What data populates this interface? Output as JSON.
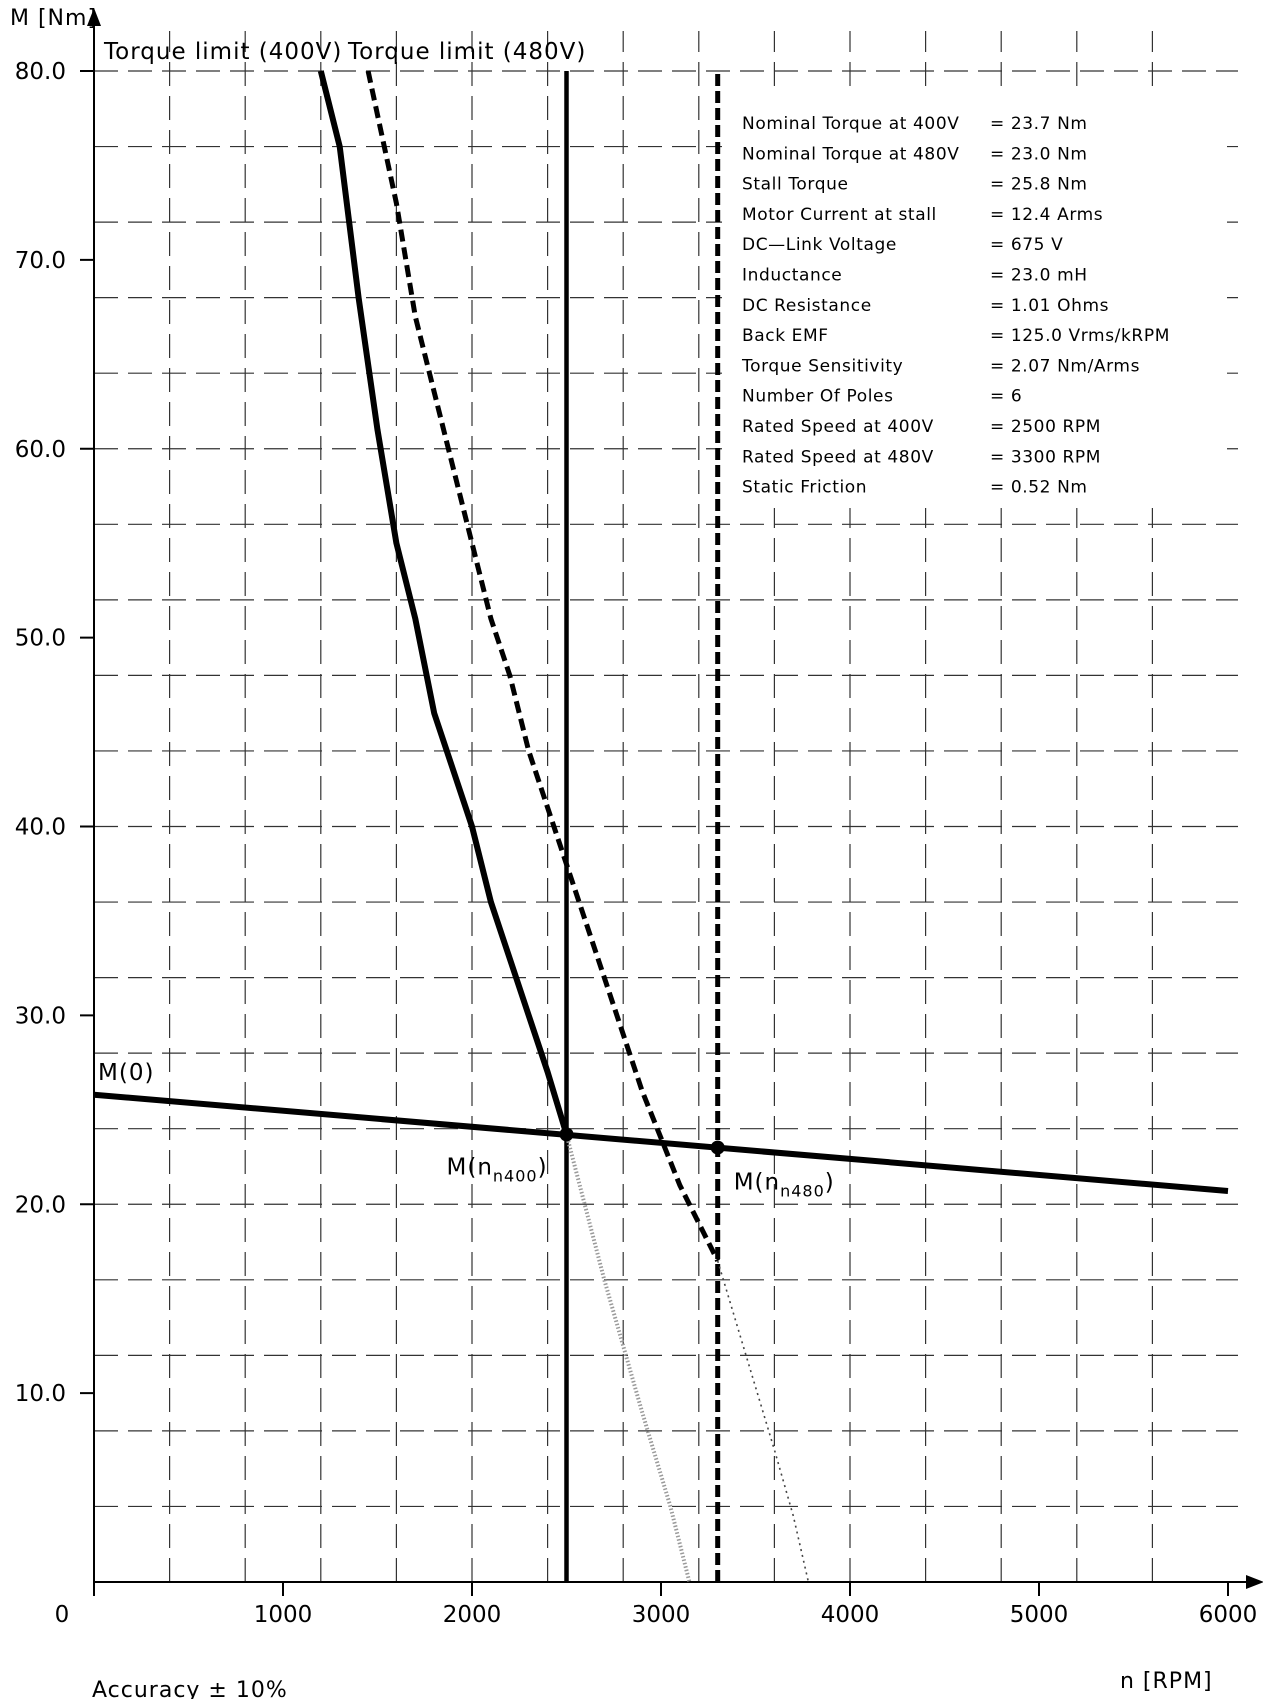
{
  "chart_data": {
    "type": "line",
    "xlabel": "n [RPM]",
    "ylabel": "M [Nm]",
    "xlim": [
      0,
      6000
    ],
    "ylim": [
      0,
      80
    ],
    "x_ticks": [
      "0",
      "1000",
      "2000",
      "3000",
      "4000",
      "5000",
      "6000"
    ],
    "y_ticks": [
      "10.0",
      "20.0",
      "30.0",
      "40.0",
      "50.0",
      "60.0",
      "70.0",
      "80.0"
    ],
    "grid": true,
    "series": [
      {
        "name": "Torque limit (400V)",
        "style": "solid-thick",
        "points": [
          [
            1200,
            80
          ],
          [
            1300,
            76
          ],
          [
            1400,
            68
          ],
          [
            1500,
            61
          ],
          [
            1600,
            55
          ],
          [
            1700,
            51
          ],
          [
            1800,
            46
          ],
          [
            1900,
            43
          ],
          [
            2000,
            40
          ],
          [
            2100,
            36
          ],
          [
            2200,
            33
          ],
          [
            2300,
            30
          ],
          [
            2400,
            27
          ],
          [
            2500,
            23.7
          ]
        ]
      },
      {
        "name": "Torque limit (480V)",
        "style": "dashed-thick",
        "points": [
          [
            1450,
            80
          ],
          [
            1600,
            73
          ],
          [
            1700,
            67
          ],
          [
            1800,
            63
          ],
          [
            1900,
            59
          ],
          [
            2000,
            55
          ],
          [
            2100,
            51
          ],
          [
            2200,
            48
          ],
          [
            2300,
            44
          ],
          [
            2400,
            41
          ],
          [
            2500,
            38
          ],
          [
            2600,
            35
          ],
          [
            2700,
            32
          ],
          [
            2800,
            29
          ],
          [
            2900,
            26
          ],
          [
            3000,
            23.5
          ],
          [
            3100,
            21
          ],
          [
            3200,
            19
          ],
          [
            3300,
            17
          ]
        ]
      },
      {
        "name": "M(0)",
        "style": "solid-thick",
        "points": [
          [
            0,
            25.8
          ],
          [
            6000,
            20.7
          ]
        ]
      },
      {
        "name": "",
        "style": "solid-vertical",
        "points": [
          [
            2500,
            0
          ],
          [
            2500,
            80
          ]
        ]
      },
      {
        "name": "",
        "style": "dashed-vertical",
        "points": [
          [
            3300,
            0
          ],
          [
            3300,
            80
          ]
        ]
      },
      {
        "name": "",
        "style": "dotted-light",
        "points": [
          [
            2500,
            23.7
          ],
          [
            2700,
            16
          ],
          [
            2900,
            9
          ],
          [
            3050,
            4
          ],
          [
            3150,
            0
          ]
        ]
      },
      {
        "name": "",
        "style": "dotted-fine",
        "points": [
          [
            3300,
            17
          ],
          [
            3450,
            12
          ],
          [
            3600,
            7
          ],
          [
            3700,
            3.5
          ],
          [
            3780,
            0
          ]
        ]
      }
    ],
    "markers": [
      {
        "x": 2500,
        "y": 23.7,
        "label": "M(n",
        "sub": "n400",
        "suffix": ")"
      },
      {
        "x": 3300,
        "y": 23.0,
        "label": "M(n",
        "sub": "n480",
        "suffix": ")"
      }
    ],
    "annotations": {
      "m0": "M(0)",
      "torque_400": "Torque limit (400V)",
      "torque_480": "Torque limit (480V)"
    },
    "specs": [
      {
        "label": "Nominal Torque at 400V",
        "value": "= 23.7  Nm"
      },
      {
        "label": "Nominal Torque at 480V",
        "value": "= 23.0  Nm"
      },
      {
        "label": "Stall Torque",
        "value": "= 25.8  Nm"
      },
      {
        "label": "Motor Current at stall",
        "value": "= 12.4   Arms"
      },
      {
        "label": "DC—Link Voltage",
        "value": "= 675    V"
      },
      {
        "label": "Inductance",
        "value": "= 23.0  mH"
      },
      {
        "label": "DC Resistance",
        "value": "= 1.01   Ohms"
      },
      {
        "label": "Back EMF",
        "value": "= 125.0 Vrms/kRPM"
      },
      {
        "label": "Torque Sensitivity",
        "value": "= 2.07  Nm/Arms"
      },
      {
        "label": "Number Of Poles",
        "value": "= 6"
      },
      {
        "label": "Rated Speed at 400V",
        "value": "= 2500 RPM"
      },
      {
        "label": "Rated Speed at 480V",
        "value": "= 3300 RPM"
      },
      {
        "label": "Static Friction",
        "value": "= 0.52  Nm"
      }
    ],
    "footer": "Accuracy ± 10%"
  }
}
